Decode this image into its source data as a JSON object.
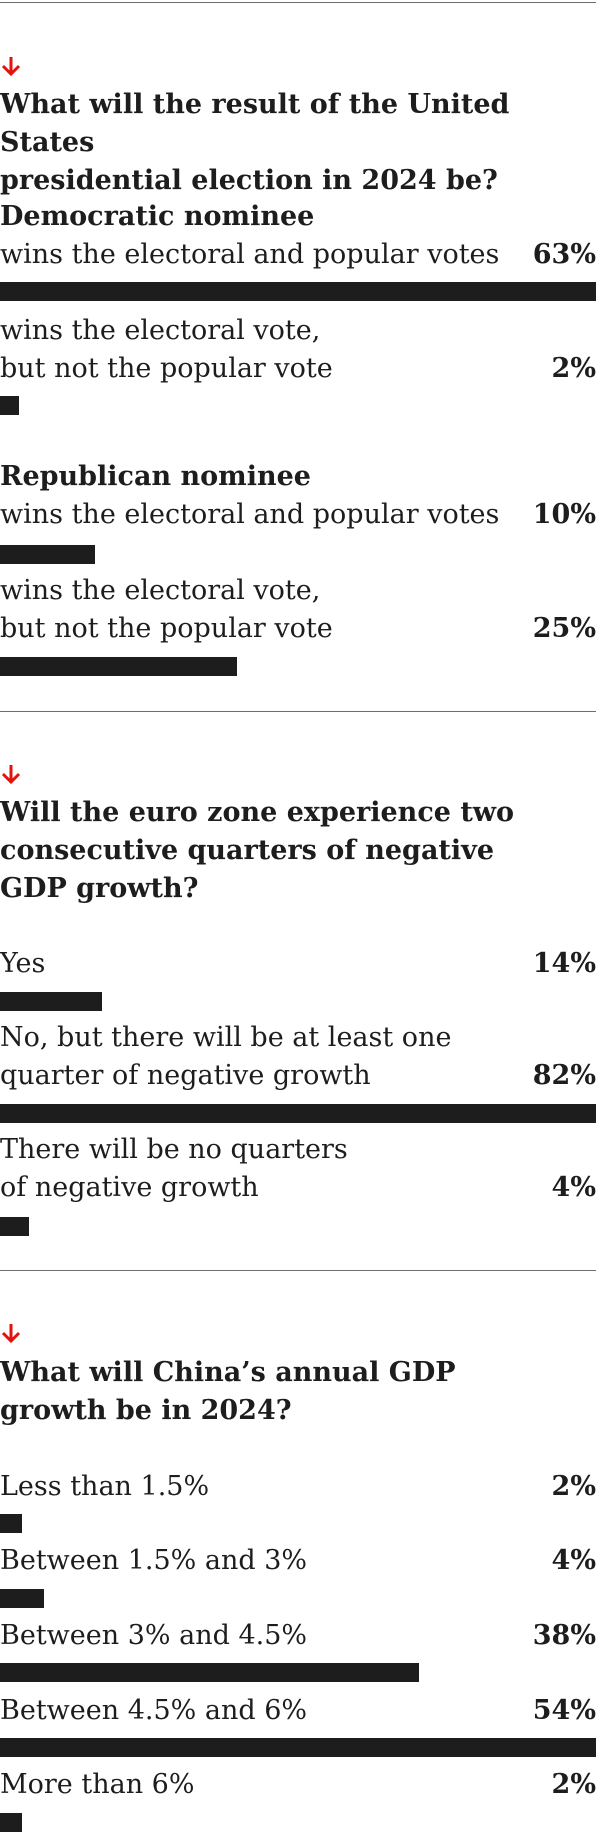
{
  "colors": {
    "arrow": "#e3120b",
    "bar": "#1d1d1d",
    "rule": "#6e6e6e",
    "text": "#1d1d1d"
  },
  "icons": {
    "arrow": "arrow-down-icon"
  },
  "chart_data": [
    {
      "type": "bar",
      "title": "What will the result of the United States\npresidential election in 2024 be?",
      "groups": [
        {
          "name": "Democratic nominee",
          "categories": [
            "wins the electoral and popular votes",
            "wins the electoral vote,\nbut not the popular vote"
          ],
          "values": [
            63,
            2
          ],
          "labels": [
            "63%",
            "2%"
          ]
        },
        {
          "name": "Republican nominee",
          "categories": [
            "wins the electoral and popular votes",
            "wins the electoral vote,\nbut not the popular vote"
          ],
          "values": [
            10,
            25
          ],
          "labels": [
            "10%",
            "25%"
          ]
        }
      ]
    },
    {
      "type": "bar",
      "title": "Will the euro zone experience two\nconsecutive quarters of negative\nGDP growth?",
      "categories": [
        "Yes",
        "No, but there will be at least one\nquarter of negative growth",
        "There will be no quarters\nof negative growth"
      ],
      "values": [
        14,
        82,
        4
      ],
      "labels": [
        "14%",
        "82%",
        "4%"
      ]
    },
    {
      "type": "bar",
      "title": "What will China’s annual GDP\ngrowth be in 2024?",
      "categories": [
        "Less than 1.5%",
        "Between 1.5% and 3%",
        "Between 3% and 4.5%",
        "Between 4.5% and 6%",
        "More than 6%"
      ],
      "values": [
        2,
        4,
        38,
        54,
        2
      ],
      "labels": [
        "2%",
        "4%",
        "38%",
        "54%",
        "2%"
      ]
    }
  ]
}
